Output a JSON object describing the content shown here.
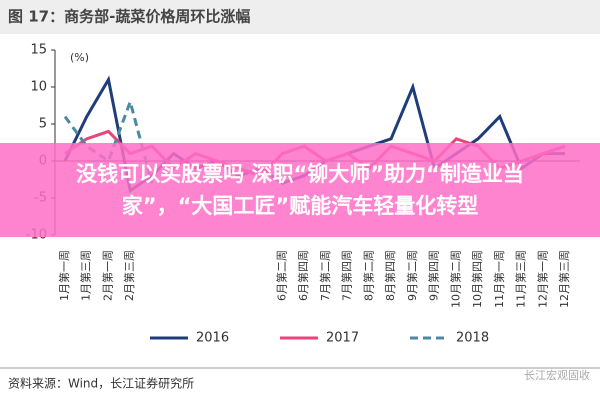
{
  "chart_data": {
    "type": "line",
    "title": "图 17：商务部-蔬菜价格周环比涨幅",
    "y_label": "(%)",
    "categories": [
      "1月第一周",
      "1月第三周",
      "2月第一周",
      "2月第三周",
      null,
      null,
      null,
      null,
      null,
      null,
      "6月第二周",
      "6月第四周",
      "7月第二周",
      "7月第四周",
      "8月第二周",
      "8月第四周",
      "9月第二周",
      "9月第四周",
      "10月第二周",
      "10月第四周",
      "11月第一周",
      "11月第三周",
      "12月第一周",
      "12月第三周"
    ],
    "series": [
      {
        "name": "2016",
        "color": "#1f3d7a",
        "dash": false,
        "values": [
          0,
          6,
          11,
          -4,
          -2,
          1,
          -1,
          0,
          -2,
          -1,
          -3,
          -2,
          0,
          1,
          2,
          3,
          10,
          -1,
          1,
          3,
          6,
          -1,
          1,
          1
        ]
      },
      {
        "name": "2017",
        "color": "#e8457a",
        "dash": false,
        "values": [
          1,
          3,
          4,
          1,
          2,
          -1,
          1,
          0,
          -1,
          -2,
          1,
          2,
          0,
          1,
          -1,
          2,
          1,
          0,
          3,
          2,
          -1,
          0,
          1,
          2
        ]
      },
      {
        "name": "2018",
        "color": "#4a8aa0",
        "dash": true,
        "values": [
          6,
          2,
          0,
          8,
          -3,
          null,
          null,
          null,
          null,
          null,
          null,
          null,
          null,
          null,
          null,
          null,
          null,
          null,
          null,
          null,
          null,
          null,
          null,
          null
        ]
      }
    ],
    "ylim": [
      -10,
      15
    ],
    "yticks": [
      -10,
      -5,
      0,
      5,
      10,
      15
    ]
  },
  "banner": [
    "没钱可以买股票吗 深职“铆大师”助力“制造业当",
    "家”，“大国工匠”赋能汽车轻量化转型"
  ],
  "source": "资料来源：Wind，长江证券研究所",
  "watermark": "长江宏观固收"
}
